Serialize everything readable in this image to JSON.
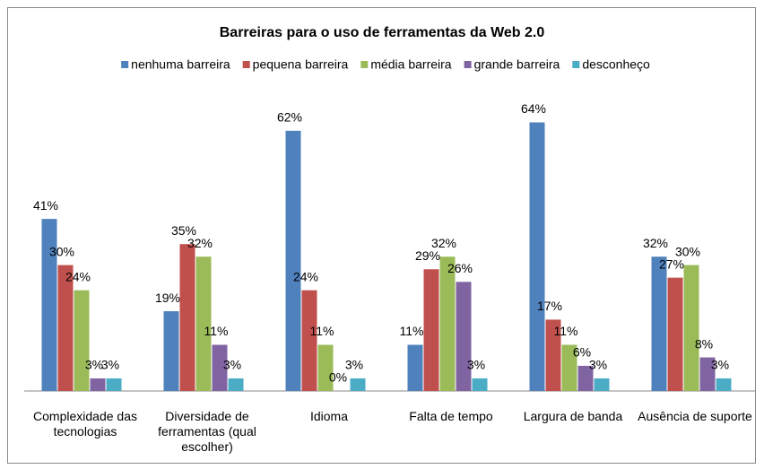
{
  "chart_data": {
    "type": "bar",
    "title": "Barreiras para o uso de ferramentas da Web 2.0",
    "categories": [
      "Complexidade das tecnologias",
      "Diversidade de ferramentas (qual escolher)",
      "Idioma",
      "Falta de tempo",
      "Largura de banda",
      "Ausência de suporte"
    ],
    "series": [
      {
        "name": "nenhuma barreira",
        "color": "#4f81bd",
        "values": [
          41,
          19,
          62,
          11,
          64,
          32
        ],
        "value_labels": [
          "41%",
          "19%",
          "62%",
          "11%",
          "64%",
          "32%"
        ]
      },
      {
        "name": "pequena barreira",
        "color": "#c0504d",
        "values": [
          30,
          35,
          24,
          29,
          17,
          27
        ],
        "value_labels": [
          "30%",
          "35%",
          "24%",
          "29%",
          "17%",
          "27%"
        ]
      },
      {
        "name": "média barreira",
        "color": "#9bbb59",
        "values": [
          24,
          32,
          11,
          32,
          11,
          30
        ],
        "value_labels": [
          "24%",
          "32%",
          "11%",
          "32%",
          "11%",
          "30%"
        ]
      },
      {
        "name": "grande barreira",
        "color": "#8064a2",
        "values": [
          3,
          11,
          0,
          26,
          6,
          8
        ],
        "value_labels": [
          "3%",
          "11%",
          "0%",
          "26%",
          "6%",
          "8%"
        ]
      },
      {
        "name": "desconheço",
        "color": "#4bacc6",
        "values": [
          3,
          3,
          3,
          3,
          3,
          3
        ],
        "value_labels": [
          "3%",
          "3%",
          "3%",
          "3%",
          "3%",
          "3%"
        ]
      }
    ],
    "ylim": [
      0,
      70
    ],
    "legend": "top"
  }
}
